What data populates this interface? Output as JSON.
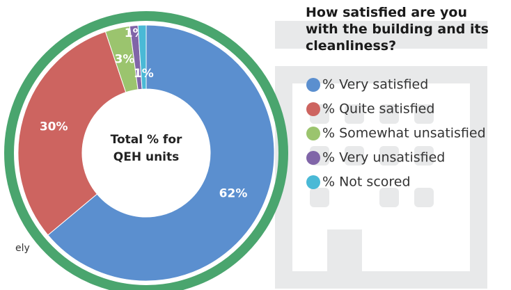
{
  "chart_data": {
    "type": "donut",
    "title": "How satisfied are you with the building and its cleanliness?",
    "center_text": [
      "Total % for",
      "QEH units"
    ],
    "categories": [
      "% Very satisfied",
      "% Quite satisfied",
      "% Somewhat unsatisfied",
      "% Very unsatisfied",
      "% Not scored"
    ],
    "values": [
      62,
      30,
      3,
      1,
      1
    ],
    "value_labels": [
      "62%",
      "30%",
      "3%",
      "1%",
      "1%"
    ],
    "colors": [
      "#5b8fcf",
      "#cd6460",
      "#9bc46e",
      "#8065a8",
      "#4ab9d6"
    ],
    "annotation": "ely"
  }
}
